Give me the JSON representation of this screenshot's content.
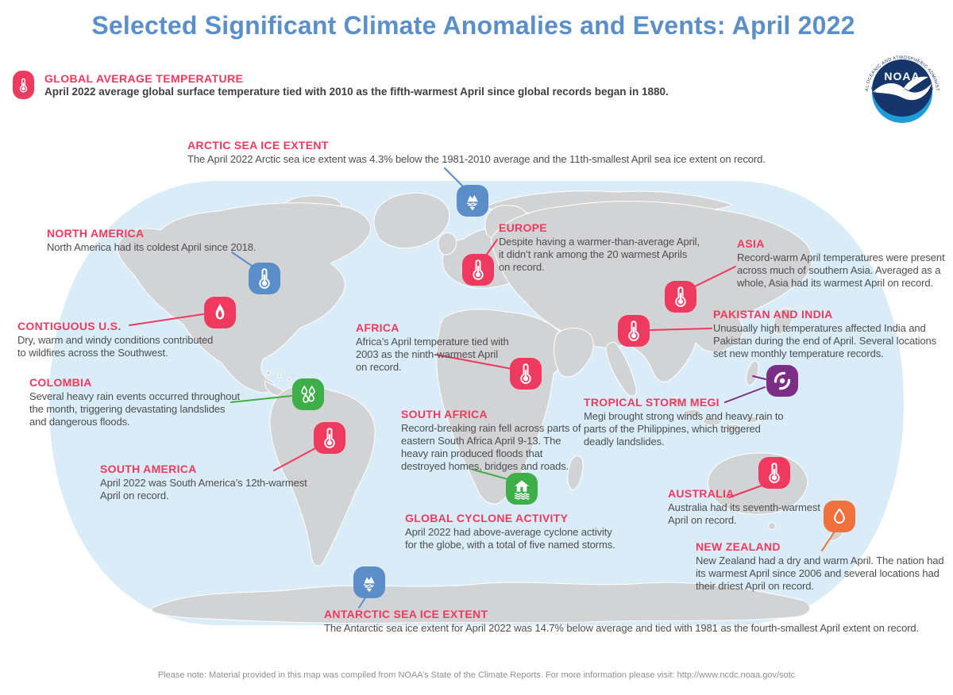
{
  "title": "Selected Significant Climate Anomalies and Events: April 2022",
  "header": {
    "label": "GLOBAL AVERAGE TEMPERATURE",
    "text": "April 2022 average global surface temperature tied with 2010 as the fifth-warmest April since global records began in 1880.",
    "icon": "thermometer-icon"
  },
  "logo": {
    "name": "NOAA",
    "ring_top": "NATIONAL OCEANIC AND ATMOSPHERIC ADMINISTRATION",
    "ring_bottom": "U.S. DEPARTMENT OF COMMERCE"
  },
  "colors": {
    "title_blue": "#5b8fc9",
    "warm_pink": "#ee3a5f",
    "cold_blue": "#5b8dc8",
    "rain_green": "#3eae49",
    "dry_orange": "#f0713d",
    "storm_purple": "#7c2e87",
    "land_gray": "#d2d3d4",
    "ocean_blue": "#d9ecf7"
  },
  "events": {
    "arctic": {
      "label": "ARCTIC SEA ICE EXTENT",
      "text": "The April 2022 Arctic sea ice extent was 4.3% below the 1981-2010 average and the 11th-smallest April sea ice extent on record.",
      "icon": "iceberg-icon",
      "color": "cold_blue"
    },
    "north_america": {
      "label": "NORTH AMERICA",
      "text": "North America had its coldest April since 2018.",
      "icon": "thermometer-cold-icon",
      "color": "cold_blue"
    },
    "contiguous_us": {
      "label": "CONTIGUOUS U.S.",
      "text": "Dry, warm and windy conditions contributed to wildfires across the Southwest.",
      "icon": "flame-icon",
      "color": "warm_pink"
    },
    "colombia": {
      "label": "COLOMBIA",
      "text": "Several heavy rain events occurred throughout the month, triggering devastating landslides and dangerous floods.",
      "icon": "raindrops-icon",
      "color": "rain_green"
    },
    "south_america": {
      "label": "SOUTH AMERICA",
      "text": "April 2022 was South America’s 12th-warmest April on record.",
      "icon": "thermometer-icon",
      "color": "warm_pink"
    },
    "europe": {
      "label": "EUROPE",
      "text": "Despite having a warmer-than-average April, it didn’t rank among the 20 warmest Aprils on record.",
      "icon": "thermometer-icon",
      "color": "warm_pink"
    },
    "africa": {
      "label": "AFRICA",
      "text": "Africa’s April temperature tied with 2003 as the ninth-warmest April on record.",
      "icon": "thermometer-icon",
      "color": "warm_pink"
    },
    "south_africa": {
      "label": "SOUTH AFRICA",
      "text": "Record-breaking rain fell across parts of eastern South Africa April 9-13. The heavy rain produced floods that destroyed homes, bridges and roads.",
      "icon": "flood-icon",
      "color": "rain_green"
    },
    "global_cyclone": {
      "label": "GLOBAL CYCLONE ACTIVITY",
      "text": "April 2022 had above-average cyclone activity for the globe, with a total of five named storms.",
      "icon": "none",
      "color": "warm_pink"
    },
    "asia": {
      "label": "ASIA",
      "text": "Record-warm April temperatures were present across much of southern Asia. Averaged as a whole, Asia had its warmest April on record.",
      "icon": "thermometer-icon",
      "color": "warm_pink"
    },
    "pakistan_india": {
      "label": "PAKISTAN AND INDIA",
      "text": "Unusually high temperatures affected India and Pakistan during the end of April. Several locations set new monthly temperature records.",
      "icon": "thermometer-icon",
      "color": "warm_pink"
    },
    "megi": {
      "label": "TROPICAL STORM MEGI",
      "text": "Megi brought strong winds and heavy rain to parts of the Philippines, which triggered deadly landslides.",
      "icon": "cyclone-icon",
      "color": "storm_purple"
    },
    "australia": {
      "label": "AUSTRALIA",
      "text": "Australia had its seventh-warmest April on record.",
      "icon": "thermometer-icon",
      "color": "warm_pink"
    },
    "new_zealand": {
      "label": "NEW ZEALAND",
      "text": "New Zealand had a dry and warm April. The nation had its warmest April since 2006 and several locations had their driest April on record.",
      "icon": "droplet-icon",
      "color": "dry_orange"
    },
    "antarctic": {
      "label": "ANTARCTIC SEA ICE EXTENT",
      "text": "The Antarctic sea ice extent for April 2022 was 14.7% below average and tied with 1981 as the fourth-smallest April extent on record.",
      "icon": "iceberg-icon",
      "color": "cold_blue"
    }
  },
  "footer_note": "Please note: Material provided in this map was compiled from NOAA’s State of the Climate Reports. For more information please visit: http://www.ncdc.noaa.gov/sotc"
}
